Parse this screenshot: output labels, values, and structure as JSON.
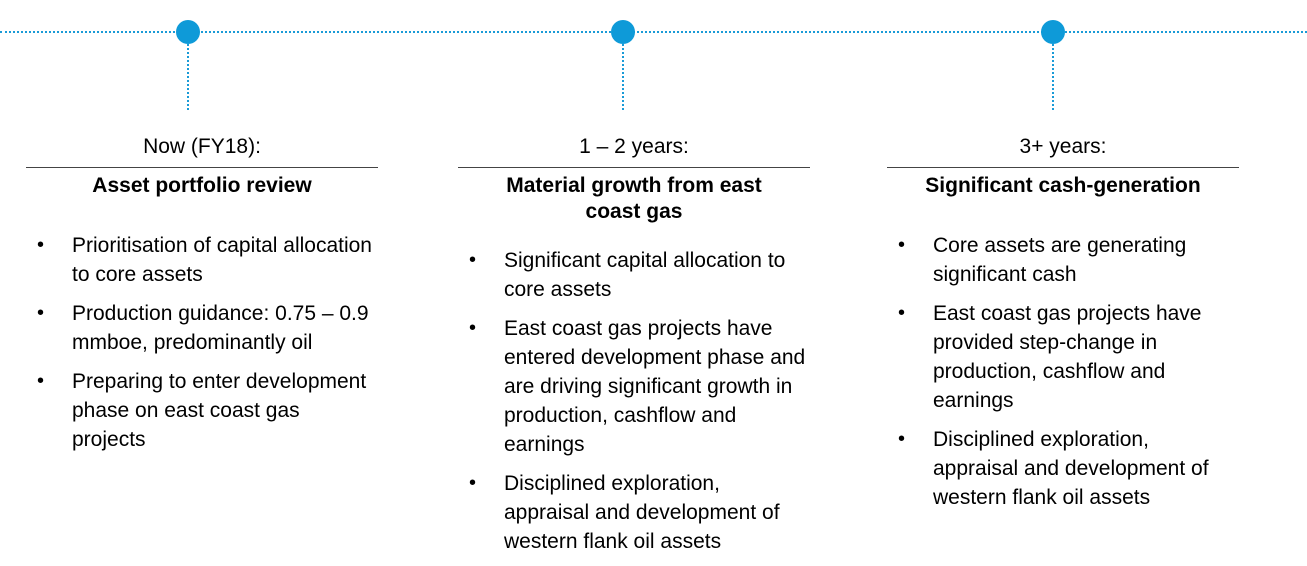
{
  "columns": [
    {
      "period": "Now (FY18):",
      "heading": "Asset portfolio review",
      "bullets": [
        "Prioritisation of capital allocation to core assets",
        "Production guidance: 0.75 – 0.9 mmboe, predominantly oil",
        "Preparing to enter development phase on east coast gas projects"
      ]
    },
    {
      "period": "1 – 2 years:",
      "heading": "Material growth from east coast gas",
      "bullets": [
        "Significant capital allocation to core assets",
        "East coast gas projects have entered development phase and are driving significant growth in production, cashflow and earnings",
        "Disciplined exploration, appraisal and development of western flank oil assets"
      ]
    },
    {
      "period": "3+ years:",
      "heading": "Significant cash-generation",
      "bullets": [
        "Core assets are generating significant cash",
        "East coast gas projects have provided step-change in production, cashflow and earnings",
        "Disciplined exploration, appraisal and development of western flank oil assets"
      ]
    }
  ],
  "bullet_glyph": "•",
  "colors": {
    "accent": "#0e9ad8",
    "rule": "#444444",
    "text": "#000000"
  }
}
